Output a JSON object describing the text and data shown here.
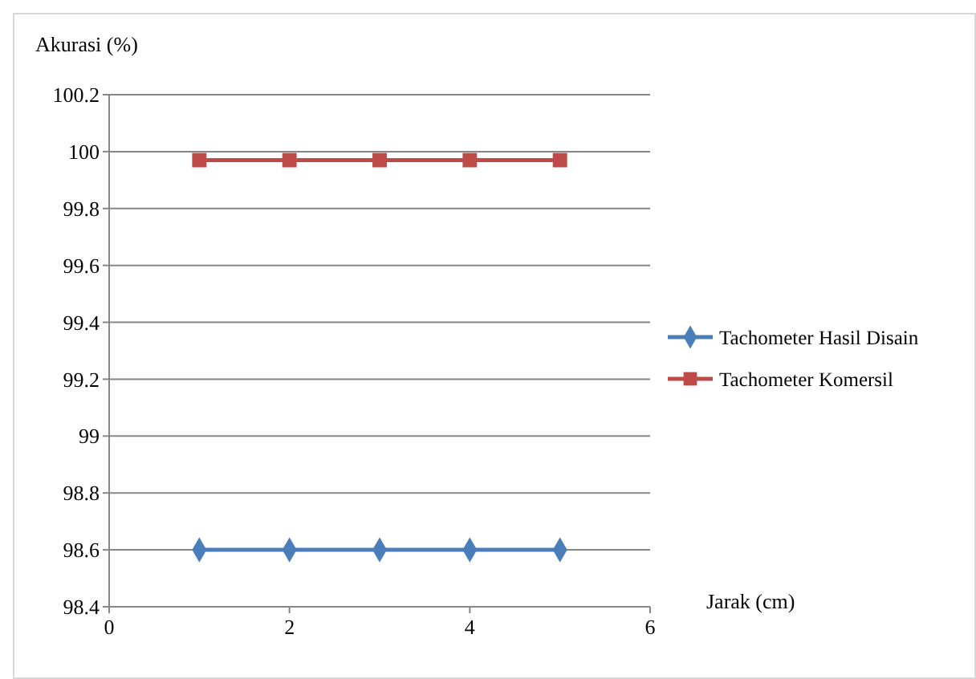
{
  "chart_data": {
    "type": "line",
    "ylabel": "Akurasi (%)",
    "xlabel": "Jarak (cm)",
    "x": [
      1,
      2,
      3,
      4,
      5
    ],
    "series": [
      {
        "name": "Tachometer Hasil Disain",
        "color": "#4a7ebb",
        "values": [
          98.6,
          98.6,
          98.6,
          98.6,
          98.6
        ],
        "marker": "diamond"
      },
      {
        "name": "Tachometer Komersil",
        "color": "#be4b48",
        "values": [
          99.97,
          99.97,
          99.97,
          99.97,
          99.97
        ],
        "marker": "square"
      }
    ],
    "xlim": [
      0,
      6
    ],
    "xticks": [
      0,
      2,
      4,
      6
    ],
    "ylim": [
      98.4,
      100.2
    ],
    "yticks": [
      98.4,
      98.6,
      98.8,
      99,
      99.2,
      99.4,
      99.6,
      99.8,
      100,
      100.2
    ],
    "grid": "y",
    "legend": "right"
  }
}
